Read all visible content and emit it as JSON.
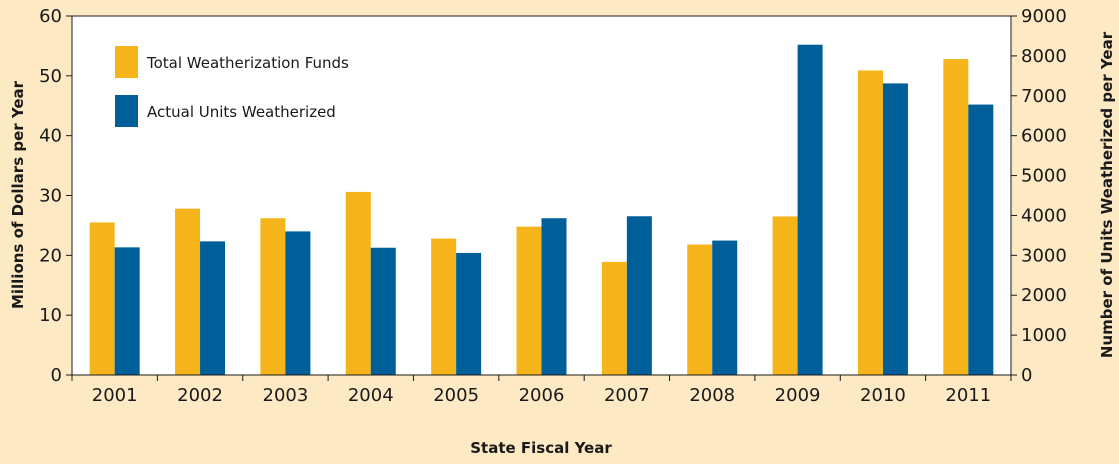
{
  "chart_data": {
    "type": "bar",
    "categories": [
      "2001",
      "2002",
      "2003",
      "2004",
      "2005",
      "2006",
      "2007",
      "2008",
      "2009",
      "2010",
      "2011"
    ],
    "series": [
      {
        "name": "Total Weatherization Funds",
        "axis": "left",
        "color": "#f5b51a",
        "values": [
          25.5,
          27.8,
          26.2,
          30.6,
          22.8,
          24.8,
          18.9,
          21.8,
          26.5,
          50.9,
          52.8
        ]
      },
      {
        "name": "Actual Units Weatherized",
        "axis": "right",
        "color": "#005f99",
        "values": [
          3200,
          3350,
          3600,
          3190,
          3060,
          3930,
          3980,
          3370,
          8280,
          7310,
          6780
        ]
      }
    ],
    "xlabel": "State Fiscal Year",
    "ylabel": "Millions of Dollars per Year",
    "y2label": "Number of Units Weatherized per Year",
    "ylim": [
      0,
      60
    ],
    "y2lim": [
      0,
      9000
    ],
    "yticks": [
      "0",
      "10",
      "20",
      "30",
      "40",
      "50",
      "60"
    ],
    "y2ticks": [
      "0",
      "1000",
      "2000",
      "3000",
      "4000",
      "5000",
      "6000",
      "7000",
      "8000",
      "9000"
    ],
    "grid": false,
    "plot_background": "#ffffff",
    "legend_position": "top-left"
  }
}
